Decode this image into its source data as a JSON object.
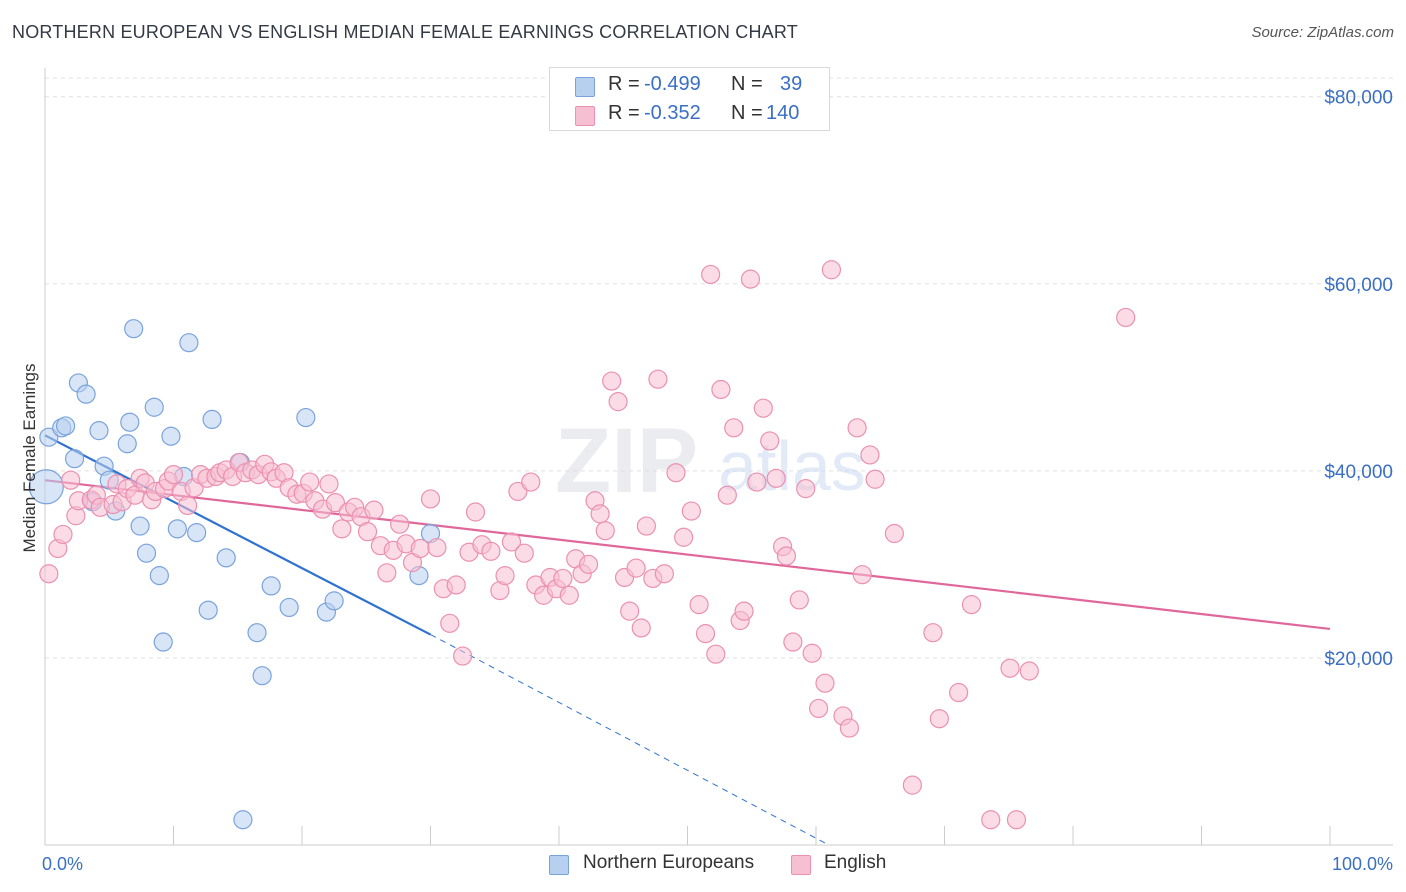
{
  "header": {
    "title": "NORTHERN EUROPEAN VS ENGLISH MEDIAN FEMALE EARNINGS CORRELATION CHART",
    "source": "Source: ZipAtlas.com"
  },
  "watermark": {
    "text_zip": "ZIP",
    "text_atlas": "atlas"
  },
  "legend": {
    "rows": [
      {
        "r_label": "R =",
        "r_value": "-0.499",
        "n_label": "N =",
        "n_value": "39"
      },
      {
        "r_label": "R =",
        "r_value": "-0.352",
        "n_label": "N =",
        "n_value": "140"
      }
    ]
  },
  "bottom_legend": {
    "series1": "Northern Europeans",
    "series2": "English"
  },
  "colors": {
    "blue_fill": "#b8d0f0",
    "blue_stroke": "#7aa3dc",
    "blue_line": "#2f72d0",
    "pink_fill": "#f7c0d2",
    "pink_stroke": "#eb90b0",
    "pink_line": "#e0679a",
    "tick_label": "#3a6fc4",
    "grid": "#e0e0e0"
  },
  "chart_data": {
    "type": "scatter",
    "title": "NORTHERN EUROPEAN VS ENGLISH MEDIAN FEMALE EARNINGS CORRELATION CHART",
    "xlabel": "",
    "ylabel": "Median Female Earnings",
    "xlim": [
      0,
      100
    ],
    "ylim": [
      0,
      82000
    ],
    "x_tick_labels": [
      "0.0%",
      "100.0%"
    ],
    "y_ticks": [
      20000,
      40000,
      60000,
      80000
    ],
    "y_tick_labels": [
      "$20,000",
      "$40,000",
      "$60,000",
      "$80,000"
    ],
    "grid": true,
    "legend_position": "top-center",
    "series": [
      {
        "name": "Northern Europeans",
        "color": "#7aa3dc",
        "trend": {
          "x": [
            0,
            30
          ],
          "y": [
            43800,
            22500
          ],
          "dashed_to": [
            61,
            0
          ]
        },
        "points": [
          [
            0.1,
            38300
          ],
          [
            0.3,
            43600
          ],
          [
            1.3,
            44600
          ],
          [
            1.6,
            44800
          ],
          [
            2.3,
            41300
          ],
          [
            2.6,
            49400
          ],
          [
            3.2,
            48200
          ],
          [
            3.7,
            36700
          ],
          [
            4.2,
            44300
          ],
          [
            4.6,
            40500
          ],
          [
            5.0,
            39000
          ],
          [
            5.5,
            35700
          ],
          [
            6.4,
            42900
          ],
          [
            6.6,
            45200
          ],
          [
            6.9,
            55200
          ],
          [
            7.4,
            34100
          ],
          [
            7.9,
            31200
          ],
          [
            8.5,
            46800
          ],
          [
            8.9,
            28800
          ],
          [
            9.2,
            21700
          ],
          [
            9.8,
            43700
          ],
          [
            10.3,
            33800
          ],
          [
            10.8,
            39400
          ],
          [
            11.2,
            53700
          ],
          [
            11.8,
            33400
          ],
          [
            12.7,
            25100
          ],
          [
            13.0,
            45500
          ],
          [
            14.1,
            30700
          ],
          [
            15.2,
            40900
          ],
          [
            15.4,
            2700
          ],
          [
            16.5,
            22700
          ],
          [
            16.9,
            18100
          ],
          [
            17.6,
            27700
          ],
          [
            19.0,
            25400
          ],
          [
            20.3,
            45700
          ],
          [
            21.9,
            24900
          ],
          [
            22.5,
            26100
          ],
          [
            29.1,
            28800
          ],
          [
            30.0,
            33300
          ]
        ]
      },
      {
        "name": "English",
        "color": "#eb90b0",
        "trend": {
          "x": [
            0,
            100
          ],
          "y": [
            39000,
            23100
          ]
        },
        "points": [
          [
            0.3,
            29000
          ],
          [
            1.0,
            31700
          ],
          [
            1.4,
            33200
          ],
          [
            2.0,
            39000
          ],
          [
            2.4,
            35200
          ],
          [
            2.6,
            36800
          ],
          [
            3.6,
            36900
          ],
          [
            4.0,
            37400
          ],
          [
            4.3,
            36100
          ],
          [
            5.3,
            36400
          ],
          [
            5.6,
            38600
          ],
          [
            6.0,
            36700
          ],
          [
            6.4,
            38100
          ],
          [
            7.0,
            37400
          ],
          [
            7.4,
            39200
          ],
          [
            7.8,
            38700
          ],
          [
            8.3,
            36900
          ],
          [
            8.6,
            37800
          ],
          [
            9.3,
            38100
          ],
          [
            9.6,
            38900
          ],
          [
            10.0,
            39600
          ],
          [
            10.6,
            37800
          ],
          [
            11.1,
            36300
          ],
          [
            11.6,
            38200
          ],
          [
            12.1,
            39600
          ],
          [
            12.6,
            39200
          ],
          [
            13.3,
            39400
          ],
          [
            13.6,
            39800
          ],
          [
            14.1,
            40100
          ],
          [
            14.6,
            39400
          ],
          [
            15.1,
            40900
          ],
          [
            15.6,
            39800
          ],
          [
            16.1,
            40100
          ],
          [
            16.6,
            39600
          ],
          [
            17.1,
            40700
          ],
          [
            17.6,
            39900
          ],
          [
            18.0,
            39200
          ],
          [
            18.6,
            39800
          ],
          [
            19.0,
            38200
          ],
          [
            19.6,
            37500
          ],
          [
            20.1,
            37600
          ],
          [
            20.6,
            38800
          ],
          [
            21.0,
            36800
          ],
          [
            21.6,
            35900
          ],
          [
            22.1,
            38600
          ],
          [
            22.6,
            36600
          ],
          [
            23.1,
            33800
          ],
          [
            23.6,
            35600
          ],
          [
            24.1,
            36100
          ],
          [
            24.6,
            35100
          ],
          [
            25.1,
            33500
          ],
          [
            25.6,
            35800
          ],
          [
            26.1,
            32000
          ],
          [
            26.6,
            29100
          ],
          [
            27.1,
            31500
          ],
          [
            27.6,
            34300
          ],
          [
            28.1,
            32200
          ],
          [
            28.6,
            30200
          ],
          [
            29.2,
            31700
          ],
          [
            30.0,
            37000
          ],
          [
            30.5,
            31800
          ],
          [
            31.0,
            27400
          ],
          [
            31.5,
            23700
          ],
          [
            32.0,
            27800
          ],
          [
            32.5,
            20200
          ],
          [
            33.0,
            31300
          ],
          [
            33.5,
            35600
          ],
          [
            34.0,
            32100
          ],
          [
            34.7,
            31400
          ],
          [
            35.4,
            27200
          ],
          [
            35.8,
            28800
          ],
          [
            36.3,
            32400
          ],
          [
            36.8,
            37800
          ],
          [
            37.3,
            31200
          ],
          [
            37.8,
            38800
          ],
          [
            38.2,
            27800
          ],
          [
            38.8,
            26700
          ],
          [
            39.3,
            28600
          ],
          [
            39.8,
            27400
          ],
          [
            40.3,
            28500
          ],
          [
            40.8,
            26700
          ],
          [
            41.3,
            30600
          ],
          [
            41.8,
            29000
          ],
          [
            42.3,
            30000
          ],
          [
            42.8,
            36800
          ],
          [
            43.2,
            35400
          ],
          [
            43.6,
            33600
          ],
          [
            44.1,
            49600
          ],
          [
            44.6,
            47400
          ],
          [
            45.1,
            28600
          ],
          [
            45.5,
            25000
          ],
          [
            46.0,
            29600
          ],
          [
            46.4,
            23200
          ],
          [
            46.8,
            34100
          ],
          [
            47.3,
            28500
          ],
          [
            47.7,
            49800
          ],
          [
            48.2,
            29000
          ],
          [
            49.1,
            39800
          ],
          [
            49.7,
            32900
          ],
          [
            50.3,
            35700
          ],
          [
            50.9,
            25700
          ],
          [
            51.4,
            22600
          ],
          [
            51.8,
            61000
          ],
          [
            52.2,
            20400
          ],
          [
            52.6,
            48700
          ],
          [
            53.1,
            37400
          ],
          [
            53.6,
            44600
          ],
          [
            54.1,
            24000
          ],
          [
            54.4,
            25000
          ],
          [
            54.9,
            60500
          ],
          [
            55.4,
            38800
          ],
          [
            55.9,
            46700
          ],
          [
            56.4,
            43200
          ],
          [
            56.9,
            39200
          ],
          [
            57.4,
            31900
          ],
          [
            57.7,
            30900
          ],
          [
            58.2,
            21700
          ],
          [
            58.7,
            26200
          ],
          [
            59.2,
            38100
          ],
          [
            59.7,
            20500
          ],
          [
            60.2,
            14600
          ],
          [
            60.7,
            17300
          ],
          [
            61.2,
            61500
          ],
          [
            62.1,
            13800
          ],
          [
            62.6,
            12500
          ],
          [
            63.2,
            44600
          ],
          [
            63.6,
            28900
          ],
          [
            64.2,
            41700
          ],
          [
            64.6,
            39100
          ],
          [
            66.1,
            33300
          ],
          [
            67.5,
            6400
          ],
          [
            69.1,
            22700
          ],
          [
            69.6,
            13500
          ],
          [
            71.1,
            16300
          ],
          [
            72.1,
            25700
          ],
          [
            73.6,
            2700
          ],
          [
            75.1,
            18900
          ],
          [
            75.6,
            2700
          ],
          [
            76.6,
            18600
          ],
          [
            84.1,
            56400
          ]
        ]
      }
    ]
  }
}
